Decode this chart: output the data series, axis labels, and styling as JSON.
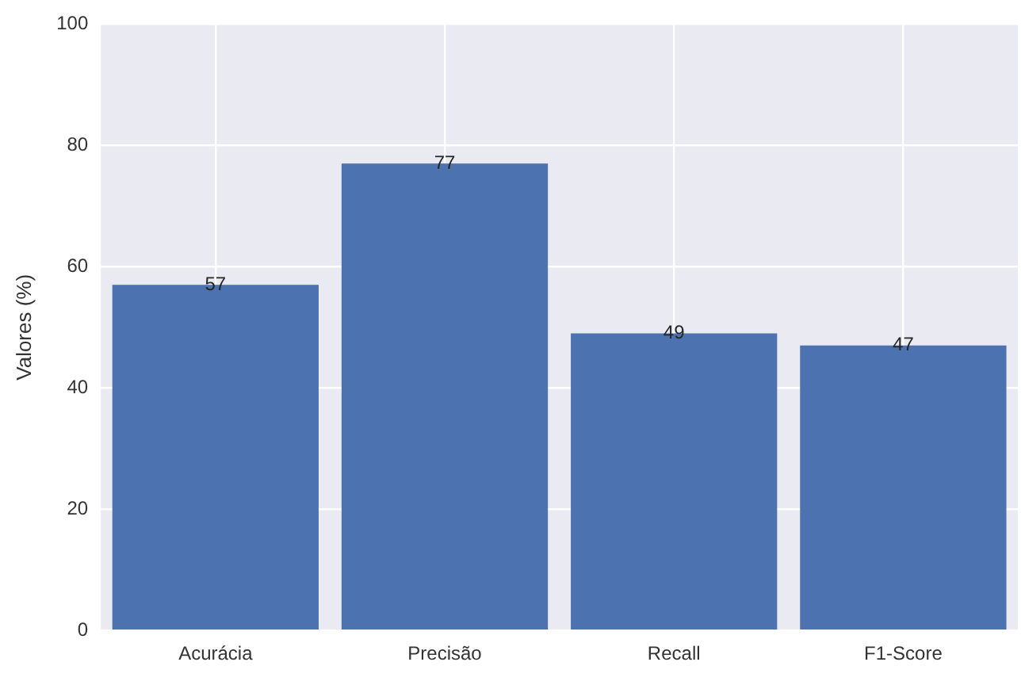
{
  "chart_data": {
    "type": "bar",
    "ylabel": "Valores (%)",
    "categories": [
      "Acurácia",
      "Precisão",
      "Recall",
      "F1-Score"
    ],
    "values": [
      57,
      77,
      49,
      47
    ],
    "color": "#4c72b0",
    "ylim": [
      0,
      100
    ],
    "yticks": [
      0,
      20,
      40,
      60,
      80,
      100
    ],
    "grid": true,
    "data_labels": true,
    "legend": false
  }
}
